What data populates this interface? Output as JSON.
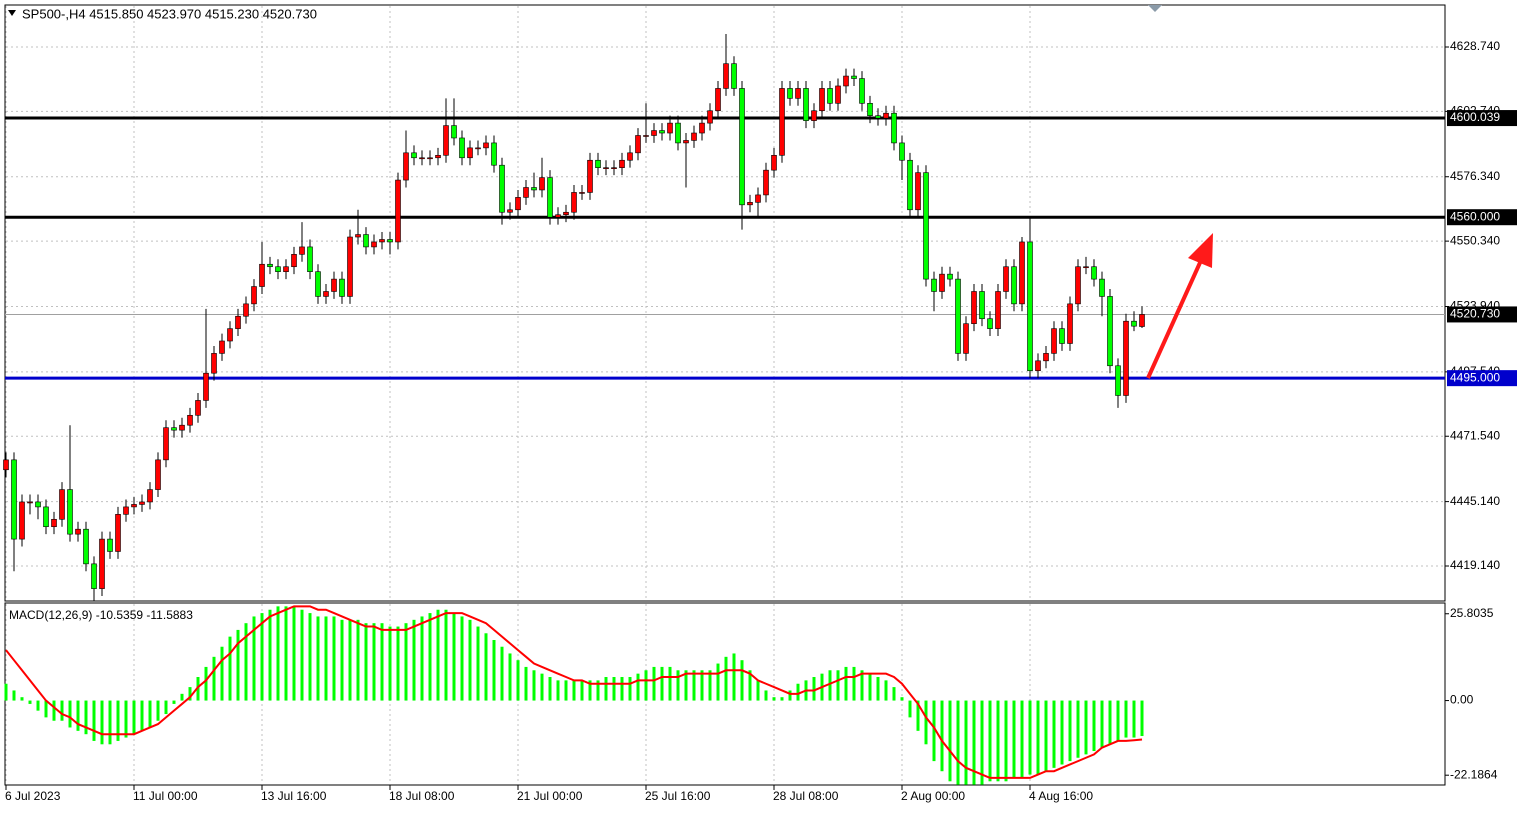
{
  "chart_data": [
    {
      "type": "candlestick",
      "title": "SP500-,H4  4515.850 4523.970 4515.230 4520.730",
      "bull_color": "#ff0000",
      "bear_color": "#00ff00",
      "wick_color": "#000000",
      "grid": true,
      "ylim": [
        4405.0,
        4645.7
      ],
      "yticks": [
        {
          "value": 4628.74,
          "label": "4628.740"
        },
        {
          "value": 4602.74,
          "label": "4602.740"
        },
        {
          "value": 4576.34,
          "label": "4576.340"
        },
        {
          "value": 4550.34,
          "label": "4550.340"
        },
        {
          "value": 4523.94,
          "label": "4523.940"
        },
        {
          "value": 4497.54,
          "label": "4497.540"
        },
        {
          "value": 4471.54,
          "label": "4471.540"
        },
        {
          "value": 4445.14,
          "label": "4445.140"
        },
        {
          "value": 4419.14,
          "label": "4419.140"
        }
      ],
      "xlim": [
        -0.125,
        179.875
      ],
      "xticks": [
        {
          "value": 0,
          "label": "6 Jul 2023"
        },
        {
          "value": 16,
          "label": "11 Jul 00:00"
        },
        {
          "value": 32,
          "label": "13 Jul 16:00"
        },
        {
          "value": 48,
          "label": "18 Jul 08:00"
        },
        {
          "value": 64,
          "label": "21 Jul 00:00"
        },
        {
          "value": 80,
          "label": "25 Jul 16:00"
        },
        {
          "value": 96,
          "label": "28 Jul 08:00"
        },
        {
          "value": 112,
          "label": "2 Aug 00:00"
        },
        {
          "value": 128,
          "label": "4 Aug 16:00"
        }
      ],
      "levels": [
        {
          "value": 4600.039,
          "label": "4600.039",
          "color": "#000000"
        },
        {
          "value": 4560.0,
          "label": "4560.000",
          "color": "#000000"
        },
        {
          "value": 4495.0,
          "label": "4495.000",
          "color": "#0000cc"
        }
      ],
      "current_price": {
        "value": 4520.73,
        "label": "4520.730"
      },
      "candles": [
        [
          4458,
          4465,
          4455,
          4462
        ],
        [
          4462,
          4465,
          4417,
          4430
        ],
        [
          4430,
          4448,
          4427,
          4445
        ],
        [
          4445,
          4448,
          4440,
          4445
        ],
        [
          4445,
          4448,
          4438,
          4443
        ],
        [
          4443,
          4446,
          4432,
          4435
        ],
        [
          4435,
          4441,
          4432,
          4438
        ],
        [
          4438,
          4453,
          4435,
          4450
        ],
        [
          4450,
          4476,
          4429,
          4432
        ],
        [
          4432,
          4437,
          4429,
          4434
        ],
        [
          4434,
          4437,
          4417,
          4420
        ],
        [
          4420,
          4423,
          4405,
          4410
        ],
        [
          4410,
          4433,
          4407,
          4430
        ],
        [
          4430,
          4433,
          4422,
          4425
        ],
        [
          4425,
          4443,
          4422,
          4440
        ],
        [
          4440,
          4446,
          4437,
          4443
        ],
        [
          4443,
          4447,
          4440,
          4444
        ],
        [
          4444,
          4448,
          4441,
          4445
        ],
        [
          4445,
          4453,
          4442,
          4450
        ],
        [
          4450,
          4465,
          4447,
          4462
        ],
        [
          4462,
          4478,
          4459,
          4475
        ],
        [
          4475,
          4478,
          4471,
          4474
        ],
        [
          4474,
          4479,
          4471,
          4476
        ],
        [
          4476,
          4483,
          4473,
          4480
        ],
        [
          4480,
          4489,
          4477,
          4486
        ],
        [
          4486,
          4523,
          4483,
          4497
        ],
        [
          4497,
          4508,
          4494,
          4505
        ],
        [
          4505,
          4513,
          4502,
          4510
        ],
        [
          4510,
          4518,
          4507,
          4515
        ],
        [
          4515,
          4523,
          4512,
          4520
        ],
        [
          4520,
          4528,
          4517,
          4525
        ],
        [
          4525,
          4535,
          4522,
          4532
        ],
        [
          4532,
          4550,
          4529,
          4541
        ],
        [
          4541,
          4544,
          4537,
          4540
        ],
        [
          4540,
          4543,
          4535,
          4538
        ],
        [
          4538,
          4543,
          4535,
          4540
        ],
        [
          4540,
          4548,
          4537,
          4545
        ],
        [
          4545,
          4558,
          4542,
          4548
        ],
        [
          4548,
          4551,
          4535,
          4538
        ],
        [
          4538,
          4541,
          4525,
          4528
        ],
        [
          4528,
          4533,
          4525,
          4530
        ],
        [
          4530,
          4538,
          4527,
          4535
        ],
        [
          4535,
          4538,
          4525,
          4528
        ],
        [
          4528,
          4555,
          4525,
          4552
        ],
        [
          4552,
          4563,
          4549,
          4553
        ],
        [
          4553,
          4556,
          4545,
          4548
        ],
        [
          4548,
          4553,
          4545,
          4550
        ],
        [
          4550,
          4554,
          4547,
          4551
        ],
        [
          4551,
          4554,
          4545,
          4550
        ],
        [
          4550,
          4578,
          4547,
          4575
        ],
        [
          4575,
          4595,
          4572,
          4586
        ],
        [
          4586,
          4589,
          4581,
          4584
        ],
        [
          4584,
          4587,
          4581,
          4584
        ],
        [
          4584,
          4587,
          4581,
          4584
        ],
        [
          4584,
          4588,
          4581,
          4585
        ],
        [
          4585,
          4608,
          4582,
          4597
        ],
        [
          4597,
          4608,
          4589,
          4592
        ],
        [
          4592,
          4595,
          4581,
          4584
        ],
        [
          4584,
          4591,
          4581,
          4588
        ],
        [
          4588,
          4591,
          4585,
          4588
        ],
        [
          4588,
          4593,
          4585,
          4590
        ],
        [
          4590,
          4593,
          4578,
          4581
        ],
        [
          4581,
          4584,
          4557,
          4562
        ],
        [
          4562,
          4566,
          4559,
          4563
        ],
        [
          4563,
          4571,
          4560,
          4568
        ],
        [
          4568,
          4575,
          4565,
          4572
        ],
        [
          4572,
          4578,
          4568,
          4571
        ],
        [
          4571,
          4584,
          4568,
          4576
        ],
        [
          4576,
          4579,
          4557,
          4560
        ],
        [
          4560,
          4564,
          4557,
          4561
        ],
        [
          4561,
          4565,
          4558,
          4562
        ],
        [
          4562,
          4573,
          4559,
          4570
        ],
        [
          4570,
          4573,
          4567,
          4570
        ],
        [
          4570,
          4586,
          4567,
          4583
        ],
        [
          4583,
          4586,
          4577,
          4580
        ],
        [
          4580,
          4583,
          4577,
          4580
        ],
        [
          4580,
          4583,
          4577,
          4580
        ],
        [
          4580,
          4586,
          4577,
          4583
        ],
        [
          4583,
          4589,
          4580,
          4586
        ],
        [
          4586,
          4596,
          4583,
          4593
        ],
        [
          4593,
          4606,
          4590,
          4593
        ],
        [
          4593,
          4598,
          4590,
          4595
        ],
        [
          4595,
          4598,
          4591,
          4594
        ],
        [
          4594,
          4601,
          4591,
          4598
        ],
        [
          4598,
          4601,
          4587,
          4590
        ],
        [
          4590,
          4594,
          4572,
          4591
        ],
        [
          4591,
          4597,
          4588,
          4594
        ],
        [
          4594,
          4601,
          4591,
          4598
        ],
        [
          4598,
          4606,
          4595,
          4603
        ],
        [
          4603,
          4615,
          4600,
          4612
        ],
        [
          4612,
          4634,
          4609,
          4622
        ],
        [
          4622,
          4625,
          4609,
          4612
        ],
        [
          4612,
          4615,
          4555,
          4565
        ],
        [
          4565,
          4569,
          4562,
          4566
        ],
        [
          4566,
          4572,
          4560,
          4569
        ],
        [
          4569,
          4582,
          4566,
          4579
        ],
        [
          4579,
          4588,
          4576,
          4585
        ],
        [
          4585,
          4615,
          4582,
          4612
        ],
        [
          4612,
          4615,
          4605,
          4608
        ],
        [
          4608,
          4615,
          4605,
          4612
        ],
        [
          4612,
          4615,
          4596,
          4599
        ],
        [
          4599,
          4606,
          4596,
          4603
        ],
        [
          4603,
          4615,
          4600,
          4612
        ],
        [
          4612,
          4615,
          4603,
          4606
        ],
        [
          4606,
          4616,
          4603,
          4613
        ],
        [
          4613,
          4620,
          4610,
          4617
        ],
        [
          4617,
          4620,
          4613,
          4616
        ],
        [
          4616,
          4619,
          4603,
          4606
        ],
        [
          4606,
          4609,
          4598,
          4601
        ],
        [
          4601,
          4604,
          4597,
          4600
        ],
        [
          4600,
          4605,
          4597,
          4602
        ],
        [
          4602,
          4605,
          4587,
          4590
        ],
        [
          4590,
          4593,
          4575,
          4583
        ],
        [
          4583,
          4586,
          4560,
          4563
        ],
        [
          4563,
          4581,
          4560,
          4578
        ],
        [
          4578,
          4581,
          4532,
          4535
        ],
        [
          4535,
          4538,
          4522,
          4530
        ],
        [
          4530,
          4540,
          4527,
          4537
        ],
        [
          4537,
          4540,
          4532,
          4535
        ],
        [
          4535,
          4538,
          4502,
          4505
        ],
        [
          4505,
          4520,
          4502,
          4517
        ],
        [
          4517,
          4533,
          4514,
          4530
        ],
        [
          4530,
          4533,
          4516,
          4519
        ],
        [
          4519,
          4522,
          4512,
          4515
        ],
        [
          4515,
          4533,
          4512,
          4530
        ],
        [
          4530,
          4543,
          4527,
          4540
        ],
        [
          4540,
          4543,
          4522,
          4525
        ],
        [
          4525,
          4552,
          4522,
          4550
        ],
        [
          4550,
          4560,
          4495,
          4498
        ],
        [
          4498,
          4505,
          4495,
          4502
        ],
        [
          4502,
          4508,
          4499,
          4505
        ],
        [
          4505,
          4518,
          4502,
          4515
        ],
        [
          4515,
          4518,
          4506,
          4509
        ],
        [
          4509,
          4528,
          4506,
          4525
        ],
        [
          4525,
          4543,
          4522,
          4540
        ],
        [
          4540,
          4544,
          4537,
          4540
        ],
        [
          4540,
          4543,
          4532,
          4535
        ],
        [
          4535,
          4538,
          4520,
          4528
        ],
        [
          4528,
          4531,
          4497,
          4500
        ],
        [
          4500,
          4503,
          4483,
          4488
        ],
        [
          4488,
          4521,
          4485,
          4518
        ],
        [
          4518,
          4522,
          4514,
          4516
        ],
        [
          4515.85,
          4523.97,
          4515.23,
          4520.73
        ]
      ]
    },
    {
      "type": "macd",
      "title": "MACD(12,26,9) -10.5359 -11.5883",
      "ylim": [
        -25.1,
        29.0
      ],
      "yticks": [
        {
          "value": 25.8035,
          "label": "25.8035"
        },
        {
          "value": 0,
          "label": "0.00"
        },
        {
          "value": -22.1864,
          "label": "-22.1864"
        }
      ],
      "histogram": {
        "color": "#00ff00",
        "values": [
          5,
          3,
          1,
          -1,
          -3,
          -5,
          -6,
          -6,
          -8,
          -9,
          -10,
          -12,
          -13,
          -13,
          -12,
          -11,
          -10,
          -9,
          -8,
          -6,
          -4,
          -1,
          2,
          4,
          7,
          10,
          13,
          16,
          19,
          21,
          23,
          25,
          26,
          27,
          28,
          28,
          28,
          27,
          26,
          25,
          25,
          25,
          24,
          24,
          24,
          23,
          23,
          23,
          22,
          22,
          23,
          24,
          25,
          26,
          27,
          27,
          26,
          25,
          24,
          22,
          20,
          18,
          16,
          14,
          12,
          10,
          9,
          8,
          7,
          6,
          6,
          6,
          6,
          6,
          6,
          7,
          7,
          7,
          7,
          8,
          9,
          10,
          10,
          10,
          9,
          9,
          9,
          9,
          9,
          11,
          13,
          14,
          12,
          9,
          6,
          3,
          1,
          1,
          3,
          5,
          6,
          7,
          8,
          9,
          9,
          10,
          10,
          9,
          8,
          7,
          6,
          4,
          1,
          -5,
          -9,
          -13,
          -18,
          -21,
          -24,
          -25,
          -25,
          -25,
          -25,
          -24,
          -24,
          -24,
          -23,
          -23,
          -22,
          -22,
          -21,
          -20,
          -19,
          -18,
          -17,
          -16,
          -15,
          -14,
          -13,
          -12,
          -11,
          -11,
          -10.5359
        ]
      },
      "signal": {
        "color": "#ff0000",
        "values": [
          15,
          12,
          9,
          6,
          3,
          0,
          -2,
          -4,
          -5,
          -7,
          -8,
          -9,
          -10,
          -10,
          -10,
          -10,
          -10,
          -9,
          -8,
          -7,
          -5,
          -3,
          -1,
          1,
          4,
          6,
          9,
          12,
          14,
          17,
          19,
          21,
          23,
          25,
          26,
          27,
          28,
          28,
          28,
          27,
          27,
          26,
          25,
          24,
          23,
          22,
          22,
          21,
          21,
          21,
          21,
          22,
          23,
          24,
          25,
          26,
          26,
          26,
          25,
          24,
          23,
          21,
          19,
          17,
          15,
          13,
          11,
          10,
          9,
          8,
          7,
          6,
          6,
          5,
          5,
          5,
          5,
          5,
          5,
          6,
          6,
          6,
          7,
          7,
          7,
          8,
          8,
          8,
          8,
          8,
          9,
          9,
          9,
          8,
          6,
          5,
          4,
          3,
          2,
          2,
          3,
          3,
          4,
          5,
          6,
          7,
          7,
          8,
          8,
          8,
          8,
          7,
          5,
          2,
          -1,
          -5,
          -8,
          -12,
          -15,
          -18,
          -20,
          -21,
          -22,
          -23,
          -23,
          -23,
          -23,
          -23,
          -23,
          -22,
          -21,
          -21,
          -20,
          -19,
          -18,
          -17,
          -16,
          -14,
          -13,
          -12,
          -12,
          -11.8,
          -11.5883
        ]
      }
    }
  ]
}
